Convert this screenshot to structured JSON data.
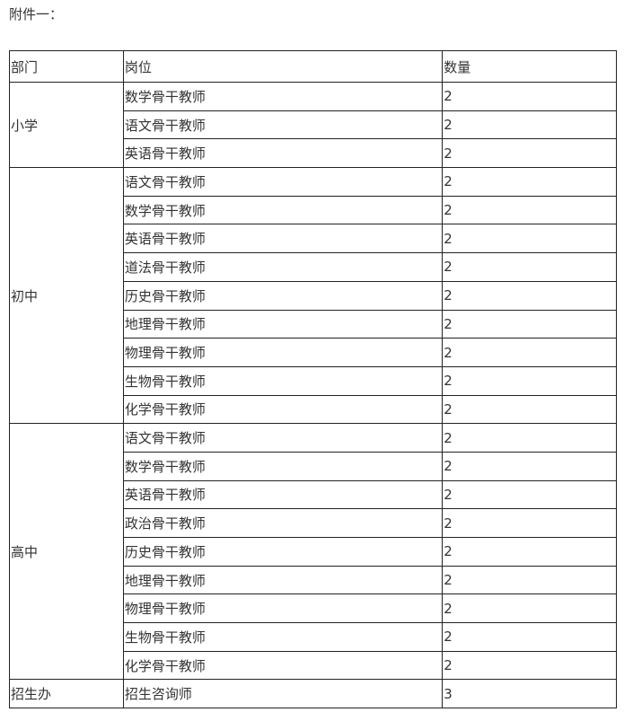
{
  "title": "附件一：",
  "table": {
    "headers": [
      "部门",
      "岗位",
      "数量"
    ],
    "groups": [
      {
        "department": "小学",
        "rows": [
          {
            "position": "数学骨干教师",
            "count": "2"
          },
          {
            "position": "语文骨干教师",
            "count": "2"
          },
          {
            "position": "英语骨干教师",
            "count": "2"
          }
        ]
      },
      {
        "department": "初中",
        "rows": [
          {
            "position": "语文骨干教师",
            "count": "2"
          },
          {
            "position": "数学骨干教师",
            "count": "2"
          },
          {
            "position": "英语骨干教师",
            "count": "2"
          },
          {
            "position": "道法骨干教师",
            "count": "2"
          },
          {
            "position": "历史骨干教师",
            "count": "2"
          },
          {
            "position": "地理骨干教师",
            "count": "2"
          },
          {
            "position": "物理骨干教师",
            "count": "2"
          },
          {
            "position": "生物骨干教师",
            "count": "2"
          },
          {
            "position": "化学骨干教师",
            "count": "2"
          }
        ]
      },
      {
        "department": "高中",
        "rows": [
          {
            "position": "语文骨干教师",
            "count": "2"
          },
          {
            "position": "数学骨干教师",
            "count": "2"
          },
          {
            "position": "英语骨干教师",
            "count": "2"
          },
          {
            "position": "政治骨干教师",
            "count": "2"
          },
          {
            "position": "历史骨干教师",
            "count": "2"
          },
          {
            "position": "地理骨干教师",
            "count": "2"
          },
          {
            "position": "物理骨干教师",
            "count": "2"
          },
          {
            "position": "生物骨干教师",
            "count": "2"
          },
          {
            "position": "化学骨干教师",
            "count": "2"
          }
        ]
      },
      {
        "department": "招生办",
        "rows": [
          {
            "position": "招生咨询师",
            "count": "3"
          }
        ]
      }
    ]
  }
}
